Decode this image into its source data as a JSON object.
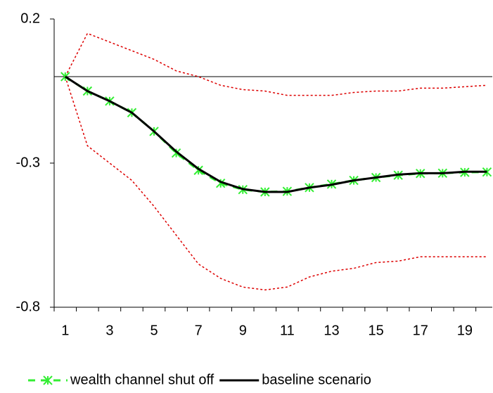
{
  "chart_data": {
    "type": "line",
    "categories": [
      "1",
      null,
      "3",
      null,
      "5",
      null,
      "7",
      null,
      "9",
      null,
      "11",
      null,
      "13",
      null,
      "15",
      null,
      "17",
      null,
      "19",
      null
    ],
    "series": [
      {
        "name": "wealth channel shut off",
        "color": "#33ee33",
        "style": "dashed-x",
        "values": [
          0,
          -0.05,
          -0.085,
          -0.125,
          -0.19,
          -0.265,
          -0.325,
          -0.37,
          -0.392,
          -0.4,
          -0.398,
          -0.385,
          -0.373,
          -0.36,
          -0.35,
          -0.342,
          -0.336,
          -0.335,
          -0.332,
          -0.331
        ]
      },
      {
        "name": "baseline scenario",
        "color": "#000000",
        "style": "solid",
        "values": [
          0,
          -0.05,
          -0.085,
          -0.125,
          -0.19,
          -0.26,
          -0.32,
          -0.365,
          -0.39,
          -0.4,
          -0.4,
          -0.385,
          -0.375,
          -0.36,
          -0.35,
          -0.34,
          -0.335,
          -0.335,
          -0.33,
          -0.33
        ]
      },
      {
        "color": "#dd0000",
        "style": "dotted",
        "values": [
          0,
          0.15,
          0.12,
          0.09,
          0.06,
          0.02,
          0,
          -0.03,
          -0.045,
          -0.05,
          -0.065,
          -0.065,
          -0.065,
          -0.055,
          -0.05,
          -0.05,
          -0.04,
          -0.04,
          -0.035,
          -0.03
        ]
      },
      {
        "color": "#dd0000",
        "style": "dotted",
        "values": [
          0,
          -0.24,
          -0.3,
          -0.36,
          -0.45,
          -0.55,
          -0.65,
          -0.7,
          -0.73,
          -0.74,
          -0.73,
          -0.695,
          -0.675,
          -0.665,
          -0.645,
          -0.64,
          -0.625,
          -0.625,
          -0.625,
          -0.625
        ]
      }
    ],
    "ylim": [
      -0.8,
      0.2
    ],
    "yticks": [
      -0.8,
      -0.3,
      0.2
    ],
    "zero_line": true,
    "legend": "bottom"
  }
}
